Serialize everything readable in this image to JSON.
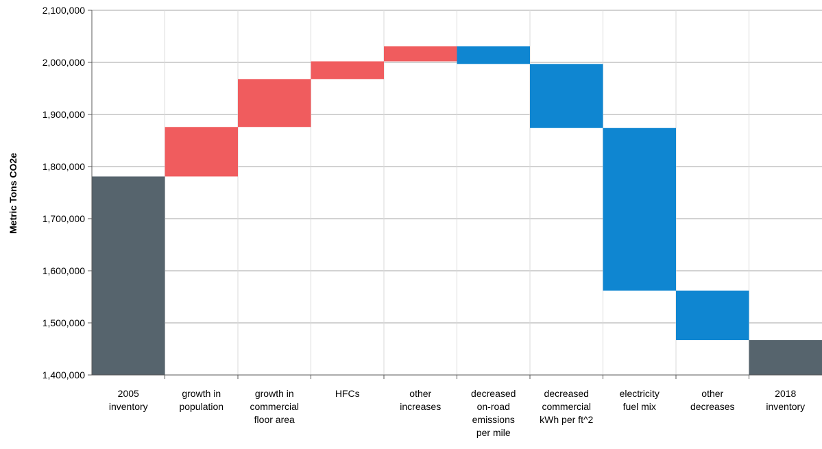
{
  "chart_data": {
    "type": "bar",
    "subtype": "waterfall",
    "title": "",
    "xlabel": "",
    "ylabel": "Metric Tons CO2e",
    "ylim": [
      1400000,
      2100000
    ],
    "yticks": [
      "1,400,000",
      "1,500,000",
      "1,600,000",
      "1,700,000",
      "1,800,000",
      "1,900,000",
      "2,000,000",
      "2,100,000"
    ],
    "grid": true,
    "legend": "none",
    "categories": [
      [
        "2005",
        "inventory"
      ],
      [
        "growth in",
        "population"
      ],
      [
        "growth in",
        "commercial",
        "floor area"
      ],
      [
        "HFCs"
      ],
      [
        "other",
        "increases"
      ],
      [
        "decreased",
        "on-road",
        "emissions",
        "per mile"
      ],
      [
        "decreased",
        "commercial",
        "kWh per ft^2"
      ],
      [
        "electricity",
        "fuel mix"
      ],
      [
        "other",
        "decreases"
      ],
      [
        "2018",
        "inventory"
      ]
    ],
    "bars": [
      {
        "kind": "total",
        "start": 1400000,
        "end": 1781000
      },
      {
        "kind": "increase",
        "start": 1781000,
        "end": 1876000
      },
      {
        "kind": "increase",
        "start": 1876000,
        "end": 1968000
      },
      {
        "kind": "increase",
        "start": 1968000,
        "end": 2002000
      },
      {
        "kind": "increase",
        "start": 2002000,
        "end": 2031000
      },
      {
        "kind": "decrease",
        "start": 2031000,
        "end": 1997000
      },
      {
        "kind": "decrease",
        "start": 1997000,
        "end": 1874000
      },
      {
        "kind": "decrease",
        "start": 1874000,
        "end": 1562000
      },
      {
        "kind": "decrease",
        "start": 1562000,
        "end": 1467000
      },
      {
        "kind": "total",
        "start": 1400000,
        "end": 1467000
      }
    ],
    "colors": {
      "total": "#56646d",
      "increase": "#f05c5e",
      "decrease": "#0f86d1",
      "gridline": "#a6a6a6",
      "category_separator": "#d9d9d9"
    }
  }
}
